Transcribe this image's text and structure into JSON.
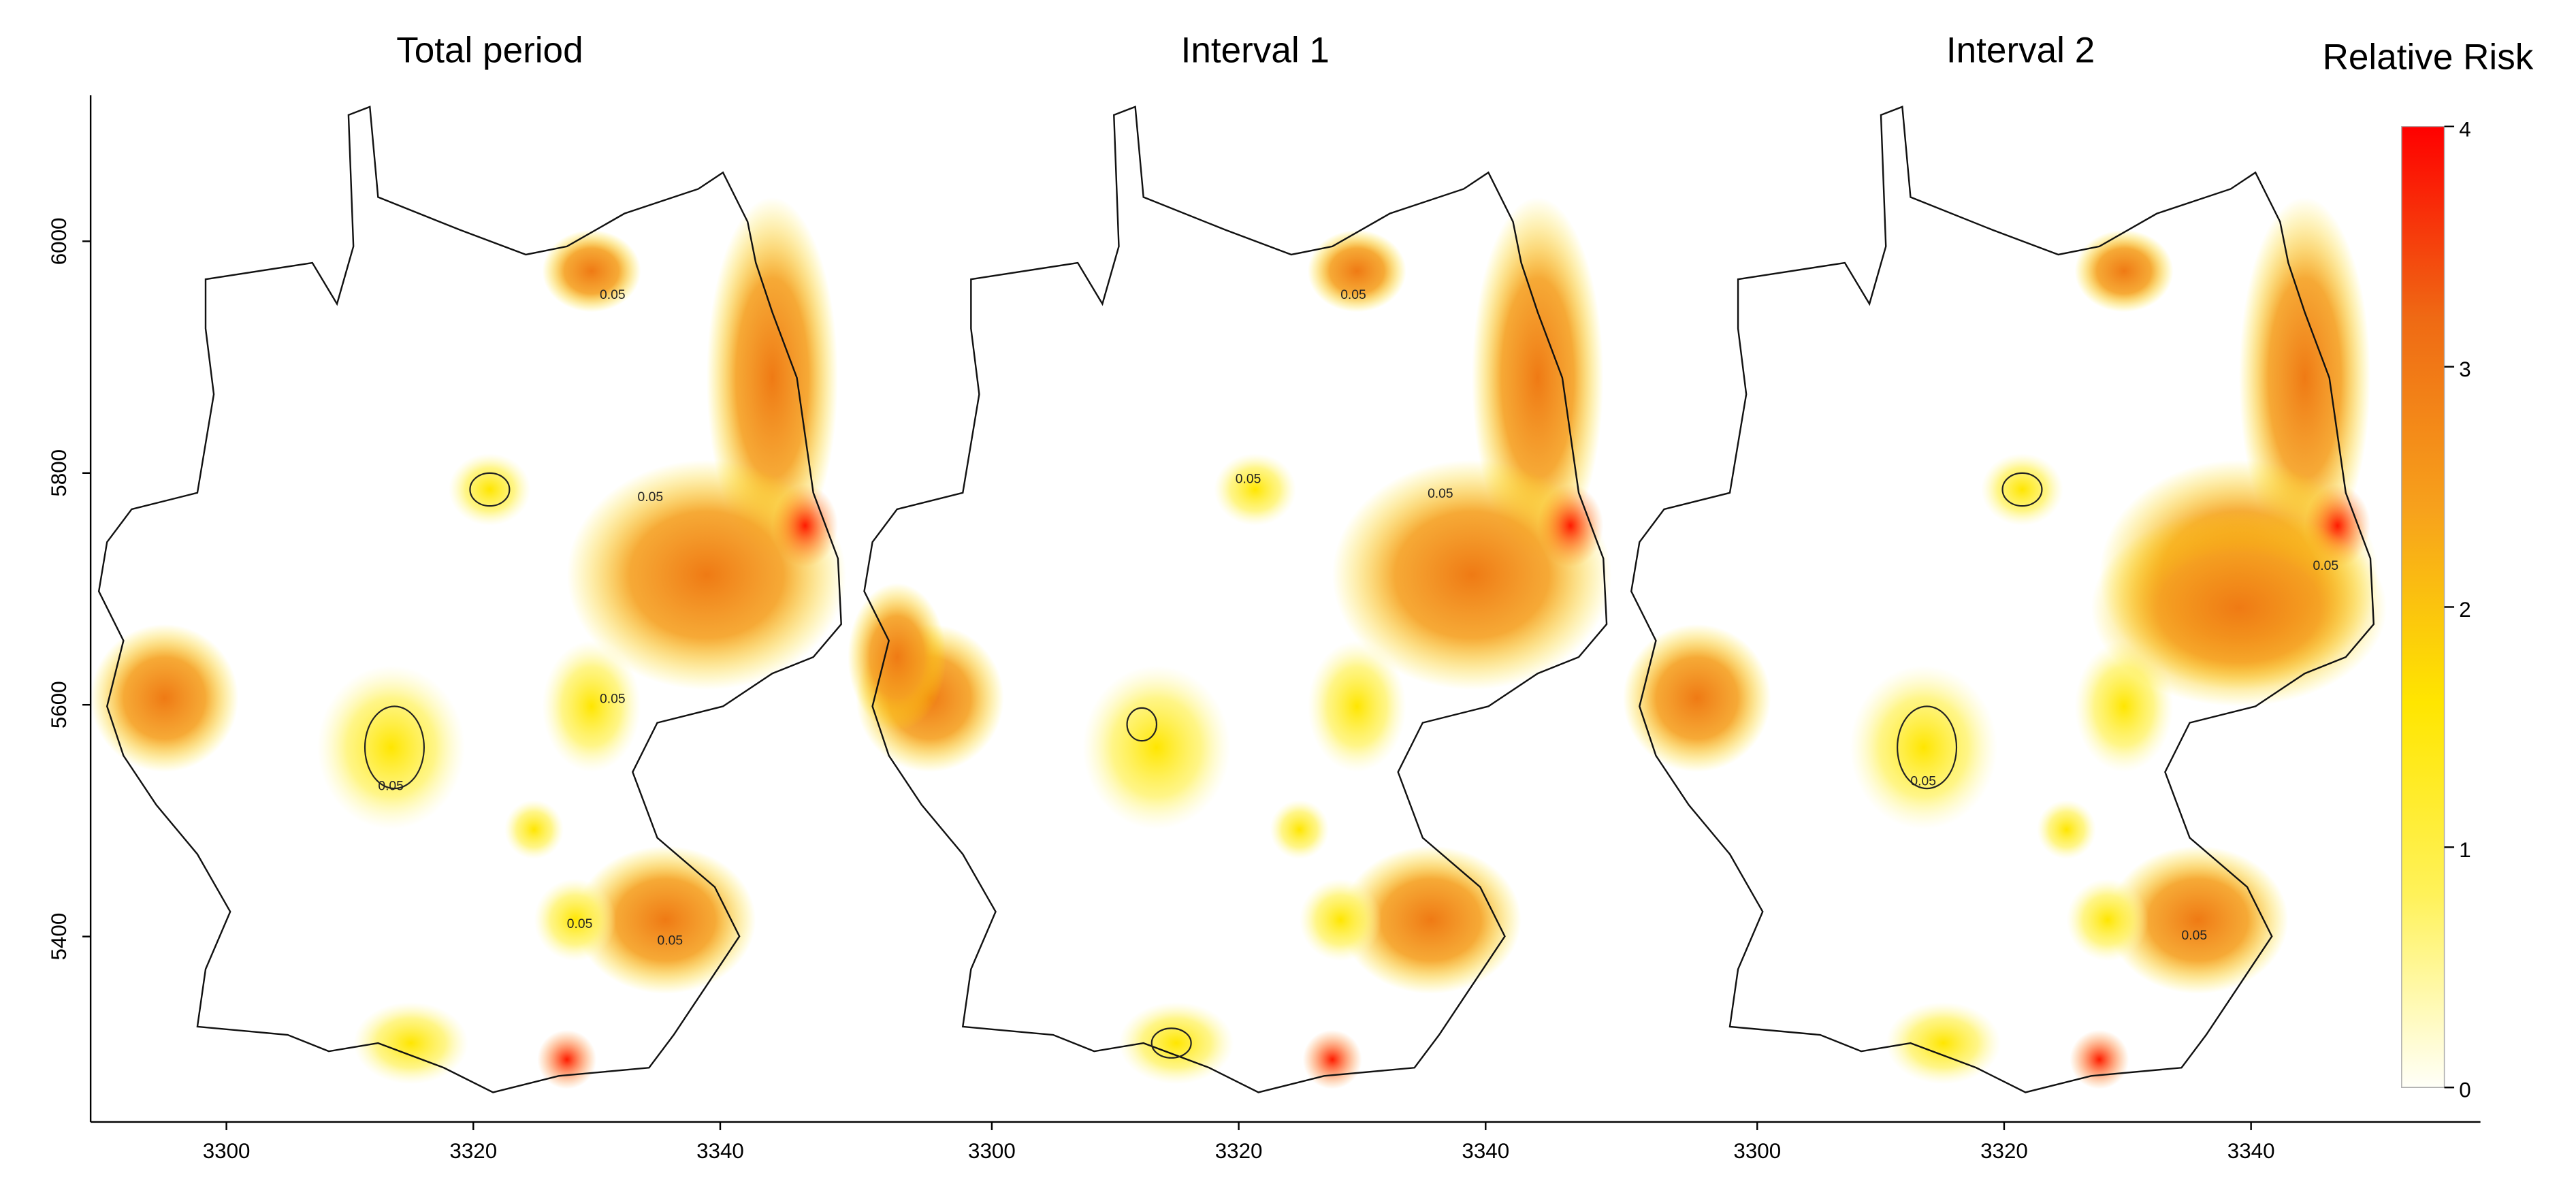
{
  "figure": {
    "panels": [
      {
        "title": "Total period",
        "xlim": [
          3289,
          3351
        ],
        "xticks": [
          3300,
          3320,
          3340
        ],
        "contour_labels": [
          0.05,
          0.05,
          0.05,
          0.05,
          0.05,
          0.05
        ]
      },
      {
        "title": "Interval 1",
        "xlim": [
          3289,
          3351
        ],
        "xticks": [
          3300,
          3320,
          3340
        ],
        "contour_labels": [
          0.05,
          0.05,
          0.05
        ]
      },
      {
        "title": "Interval 2",
        "xlim": [
          3289,
          3351
        ],
        "xticks": [
          3300,
          3320,
          3340
        ],
        "contour_labels": [
          0.05,
          0.05,
          0.05
        ]
      }
    ],
    "ylim": [
      5240,
      6126
    ],
    "yticks": [
      6000,
      5800,
      5600,
      5400
    ],
    "colorbar": {
      "title": "Relative Risk",
      "lim": [
        0,
        4
      ],
      "ticks": [
        0,
        1,
        2,
        3,
        4
      ],
      "colors": [
        "#fffff8",
        "#fff25a",
        "#ffe600",
        "#f7a21c",
        "#ef6a14",
        "#ff0000"
      ]
    }
  }
}
